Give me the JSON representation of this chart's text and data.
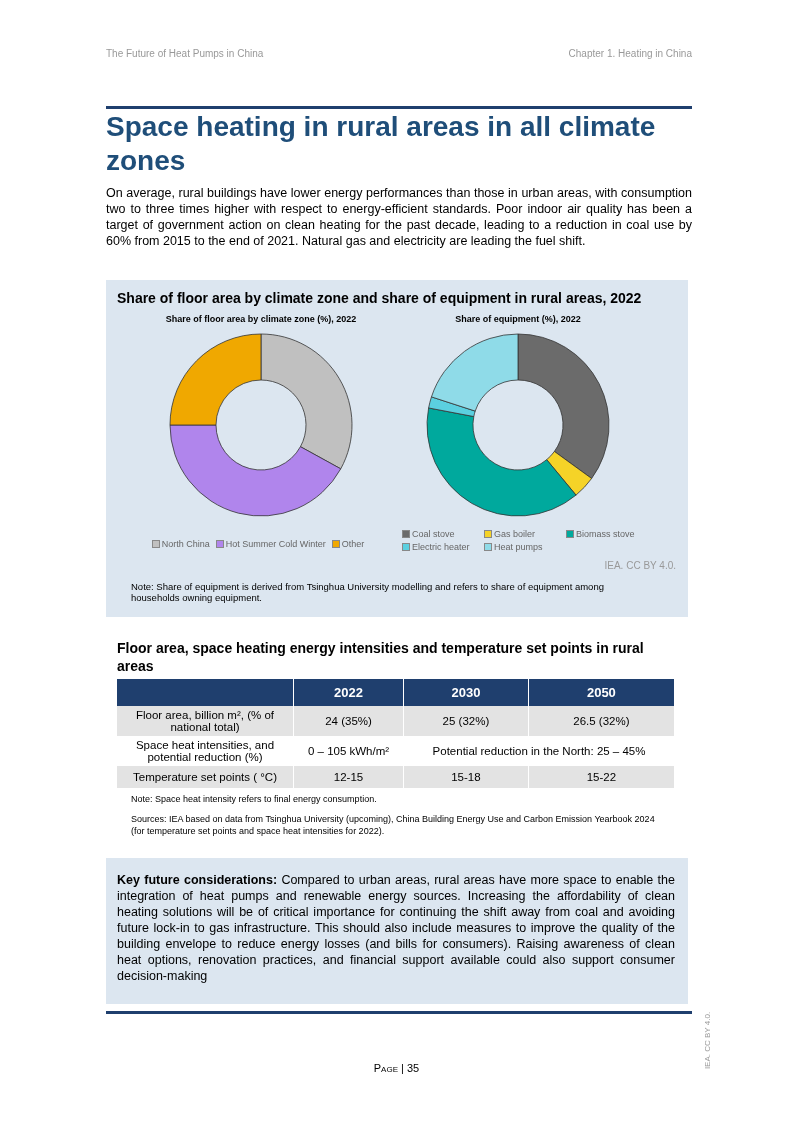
{
  "chart_data": [
    {
      "type": "donut",
      "title": "Share of floor area by climate zone (%), 2022",
      "categories": [
        "North China",
        "Hot Summer Cold Winter",
        "Other"
      ],
      "values": [
        33,
        42,
        25
      ],
      "colors": [
        "#c0c0c0",
        "#b085ec",
        "#f0a800"
      ],
      "legend": "bottom"
    },
    {
      "type": "donut",
      "title": "Share of equipment (%), 2022",
      "categories": [
        "Coal stove",
        "Gas boiler",
        "Biomass stove",
        "Electric heater",
        "Heat pumps"
      ],
      "values": [
        35,
        4,
        39,
        2,
        20
      ],
      "colors": [
        "#6b6b6b",
        "#f5d327",
        "#00a99d",
        "#5bd0e0",
        "#8fdbe8"
      ],
      "legend": "bottom"
    },
    {
      "type": "other",
      "annotations": [
        "The Future of Heat Pumps in China",
        "Chapter 1. Heating in China",
        "Space heating in rural areas in all climate zones",
        "On average, rural buildings have lower energy performances than those in urban areas, with consumption two to three times higher with respect to energy-efficient standards. Poor indoor air quality has been a target of government action on clean heating for the past decade, leading to a reduction in coal use by 60% from 2015 to the end of 2021. Natural gas and electricity are leading the fuel shift.",
        "Share of floor area by climate zone and share of equipment in rural areas, 2022",
        "IEA. CC BY 4.0.",
        "Note: Share of equipment is derived from Tsinghua University modelling and refers to share of equipment among households owning equipment.",
        "Floor area, space heating energy intensities and temperature set points in rural areas",
        "2022",
        "2030",
        "2050",
        "Floor area, billion m², (% of national total)",
        "24 (35%)",
        "25 (32%)",
        "26.5 (32%)",
        "Space heat intensities, and potential reduction (%)",
        "0 – 105 kWh/m²",
        "Potential reduction in the North: 25 – 45%",
        "Temperature set points ( °C)",
        "12-15",
        "15-18",
        "15-22",
        "Note: Space heat intensity refers to final energy consumption.",
        "Sources: IEA based on data from Tsinghua University (upcoming), China Building Energy Use and Carbon Emission Yearbook 2024 (for temperature set points and space heat intensities for 2022).",
        "Key future considerations:",
        "Compared to urban areas, rural areas have more space to enable the integration of heat pumps and renewable energy sources. Increasing the affordability of clean heating solutions will be of critical importance for continuing the shift away from coal and avoiding future lock-in to gas infrastructure. This should also include measures to improve the quality of the building envelope to reduce energy losses (and bills for consumers). Raising awareness of clean heat options, renovation practices, and financial support available could also support consumer decision-making",
        "Page | 35",
        "IEA. CC BY 4.0."
      ]
    }
  ]
}
